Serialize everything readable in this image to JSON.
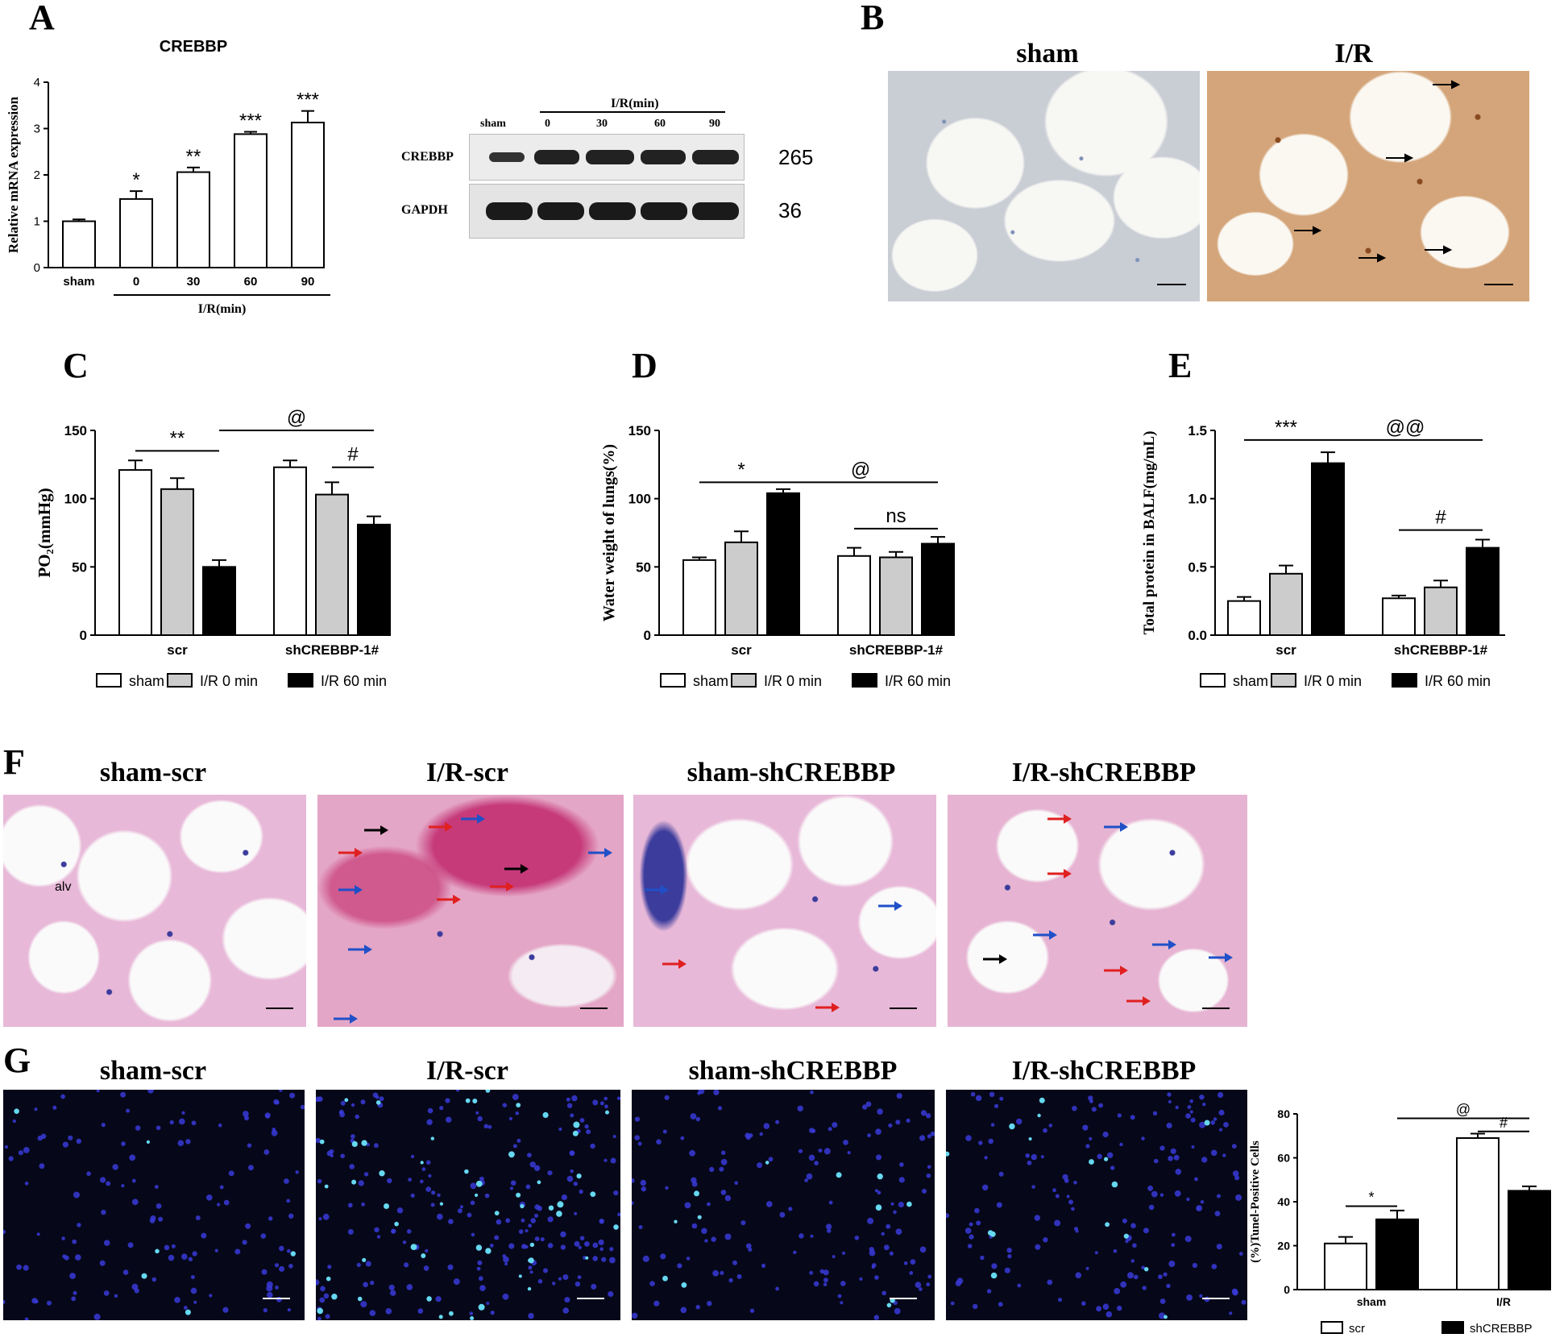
{
  "panels": {
    "A": {
      "letter": "A",
      "blot": {
        "group_label": "I/R(min)",
        "lanes": [
          "sham",
          "0",
          "30",
          "60",
          "90"
        ],
        "rows": [
          {
            "protein": "CREBBP",
            "mw": "265"
          },
          {
            "protein": "GAPDH",
            "mw": "36"
          }
        ]
      }
    },
    "B": {
      "letter": "B",
      "titles": [
        "sham",
        "I/R"
      ]
    },
    "C": {
      "letter": "C"
    },
    "D": {
      "letter": "D"
    },
    "E": {
      "letter": "E"
    },
    "F": {
      "letter": "F",
      "titles": [
        "sham-scr",
        "I/R-scr",
        "sham-shCREBBP",
        "I/R-shCREBBP"
      ],
      "annotation": "alv"
    },
    "G": {
      "letter": "G",
      "titles": [
        "sham-scr",
        "I/R-scr",
        "sham-shCREBBP",
        "I/R-shCREBBP"
      ]
    }
  },
  "colors": {
    "sham": "#ffffff",
    "ir0": "#cccccc",
    "ir60": "#000000",
    "scr": "#ffffff",
    "shCREBBP": "#000000",
    "dapi": "#3a3ad8",
    "tunel": "#66d8f0",
    "he_pink": "#e8a8d0",
    "ihc_brown": "#b5651d",
    "rbc": "#c0306a",
    "arrow_red": "#e02020",
    "arrow_blue": "#2050c8",
    "arrow_black": "#000000"
  },
  "chart_data": [
    {
      "id": "A",
      "type": "bar",
      "title": "CREBBP",
      "ylabel": "Relative mRNA expression",
      "ylim": [
        0,
        4
      ],
      "yticks": [
        0,
        1,
        2,
        3,
        4
      ],
      "categories": [
        "sham",
        "0",
        "30",
        "60",
        "90"
      ],
      "group_label": "I/R(min)",
      "values": [
        1.0,
        1.48,
        2.06,
        2.88,
        3.13
      ],
      "errors": [
        0.04,
        0.17,
        0.1,
        0.05,
        0.25
      ],
      "significance": [
        "",
        "*",
        "**",
        "***",
        "***"
      ]
    },
    {
      "id": "C",
      "type": "bar",
      "ylabel": "PO₂(mmHg)",
      "ylim": [
        0,
        150
      ],
      "yticks": [
        0,
        50,
        100,
        150
      ],
      "categories": [
        "scr",
        "shCREBBP-1#"
      ],
      "series": [
        {
          "name": "sham",
          "values": [
            121,
            123
          ],
          "errors": [
            7,
            5
          ]
        },
        {
          "name": "I/R 0 min",
          "values": [
            107,
            103
          ],
          "errors": [
            8,
            9
          ]
        },
        {
          "name": "I/R 60 min",
          "values": [
            50,
            81
          ],
          "errors": [
            5,
            6
          ]
        }
      ],
      "annotations": [
        "**",
        "@",
        "#"
      ]
    },
    {
      "id": "D",
      "type": "bar",
      "ylabel": "Water weight of lungs(%)",
      "ylim": [
        0,
        150
      ],
      "yticks": [
        0,
        50,
        100,
        150
      ],
      "categories": [
        "scr",
        "shCREBBP-1#"
      ],
      "series": [
        {
          "name": "sham",
          "values": [
            55,
            58
          ],
          "errors": [
            2,
            6
          ]
        },
        {
          "name": "I/R 0 min",
          "values": [
            68,
            57
          ],
          "errors": [
            8,
            4
          ]
        },
        {
          "name": "I/R 60 min",
          "values": [
            104,
            67
          ],
          "errors": [
            3,
            5
          ]
        }
      ],
      "annotations": [
        "*",
        "@",
        "ns"
      ]
    },
    {
      "id": "E",
      "type": "bar",
      "ylabel": "Total protein in BALF(mg/mL)",
      "ylim": [
        0,
        1.5
      ],
      "yticks": [
        0.0,
        0.5,
        1.0,
        1.5
      ],
      "categories": [
        "scr",
        "shCREBBP-1#"
      ],
      "series": [
        {
          "name": "sham",
          "values": [
            0.25,
            0.27
          ],
          "errors": [
            0.03,
            0.02
          ]
        },
        {
          "name": "I/R 0 min",
          "values": [
            0.45,
            0.35
          ],
          "errors": [
            0.06,
            0.05
          ]
        },
        {
          "name": "I/R 60 min",
          "values": [
            1.26,
            0.64
          ],
          "errors": [
            0.08,
            0.06
          ]
        }
      ],
      "annotations": [
        "***",
        "@@",
        "#"
      ]
    },
    {
      "id": "G",
      "type": "bar",
      "ylabel": "(%)Tunel-Positive Cells",
      "ylim": [
        0,
        80
      ],
      "yticks": [
        0,
        20,
        40,
        60,
        80
      ],
      "categories": [
        "sham",
        "I/R"
      ],
      "series": [
        {
          "name": "scr",
          "values": [
            21,
            69
          ],
          "errors": [
            3,
            2
          ]
        },
        {
          "name": "shCREBBP",
          "values": [
            32,
            45
          ],
          "errors": [
            4,
            2
          ]
        }
      ],
      "annotations": [
        "*",
        "@",
        "#"
      ]
    }
  ]
}
